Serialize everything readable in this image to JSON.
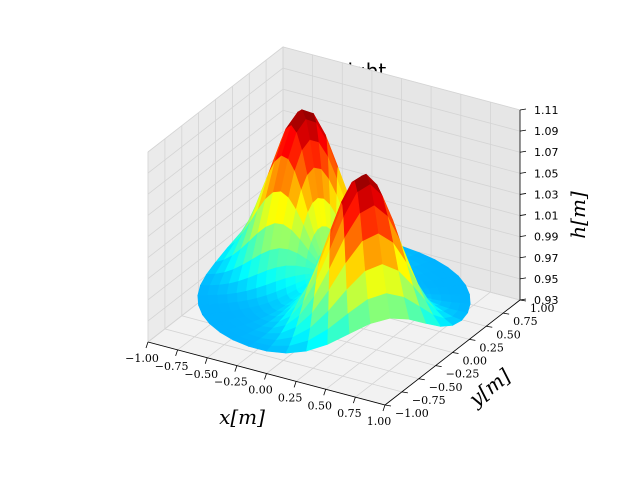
{
  "chart_data": {
    "type": "surface3d",
    "title": "Fluid Height",
    "xlabel": "$x[m]$",
    "ylabel": "$y[m]$",
    "zlabel": "$h[m]$",
    "xlim": [
      -1.0,
      1.0
    ],
    "ylim": [
      -1.0,
      1.0
    ],
    "zlim": [
      0.93,
      1.11
    ],
    "xticks": [
      "−1.00",
      "−0.75",
      "−0.50",
      "−0.25",
      "0.00",
      "0.25",
      "0.50",
      "0.75",
      "1.00"
    ],
    "yticks": [
      "−1.00",
      "−0.75",
      "−0.50",
      "−0.25",
      "0.00",
      "0.25",
      "0.50",
      "0.75",
      "1.00"
    ],
    "zticks": [
      "0.93",
      "0.95",
      "0.97",
      "0.99",
      "1.01",
      "1.03",
      "1.05",
      "1.07",
      "1.09",
      "1.11"
    ],
    "colormap": "jet",
    "domain": "unit disk",
    "base_height": 0.95,
    "peaks": [
      {
        "x": -0.45,
        "y": 0.35,
        "height": 1.1
      },
      {
        "x": 0.45,
        "y": -0.35,
        "height": 1.1
      }
    ],
    "grid": true
  }
}
